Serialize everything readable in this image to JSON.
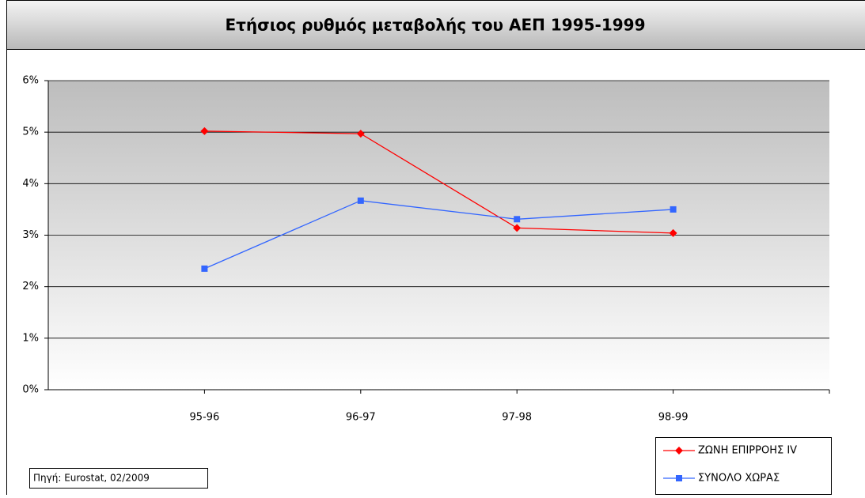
{
  "chart_data": {
    "type": "line",
    "title": "Ετήσιος ρυθμός μεταβολής του ΑΕΠ 1995-1999",
    "source": "Πηγή: Eurostat, 02/2009",
    "categories": [
      "95-96",
      "96-97",
      "97-98",
      "98-99"
    ],
    "series": [
      {
        "name": "ΖΩΝΗ ΕΠΙΡΡΟΗΣ IV",
        "color": "#ff0000",
        "marker": "diamond",
        "values": [
          5.02,
          4.97,
          3.14,
          3.04
        ]
      },
      {
        "name": "ΣΥΝΟΛΟ ΧΩΡΑΣ",
        "color": "#3366ff",
        "marker": "square",
        "values": [
          2.35,
          3.67,
          3.31,
          3.5
        ]
      }
    ],
    "ylim": [
      0,
      6
    ],
    "yticks": [
      {
        "value": 0,
        "label": "0%"
      },
      {
        "value": 1,
        "label": "1%"
      },
      {
        "value": 2,
        "label": "2%"
      },
      {
        "value": 3,
        "label": "3%"
      },
      {
        "value": 4,
        "label": "4%"
      },
      {
        "value": 5,
        "label": "5%"
      },
      {
        "value": 6,
        "label": "6%"
      }
    ],
    "grid": true
  }
}
